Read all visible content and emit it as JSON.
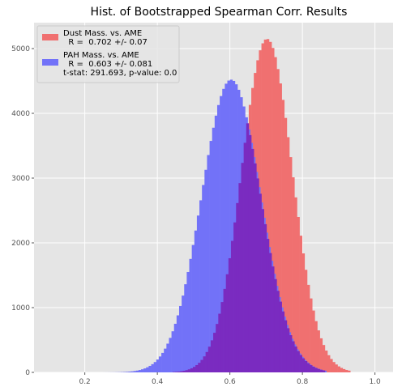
{
  "chart_data": {
    "type": "bar",
    "title": "Hist. of Bootstrapped Spearman Corr. Results",
    "xlabel": "",
    "ylabel": "",
    "xlim": [
      0.06,
      1.05
    ],
    "ylim": [
      0,
      5400
    ],
    "xticks": [
      {
        "value": 0.2,
        "label": "0.2"
      },
      {
        "value": 0.4,
        "label": "0.4"
      },
      {
        "value": 0.6,
        "label": "0.6"
      },
      {
        "value": 0.8,
        "label": "0.8"
      },
      {
        "value": 1.0,
        "label": "1.0"
      }
    ],
    "yticks": [
      {
        "value": 0,
        "label": "0"
      },
      {
        "value": 1000,
        "label": "1000"
      },
      {
        "value": 2000,
        "label": "2000"
      },
      {
        "value": 3000,
        "label": "3000"
      },
      {
        "value": 4000,
        "label": "4000"
      },
      {
        "value": 5000,
        "label": "5000"
      }
    ],
    "grid": true,
    "legend_position": "top-left",
    "series": [
      {
        "name": "Dust Mass. vs. AME",
        "legend_lines": [
          "Dust Mass. vs. AME",
          "  R =  0.702 +/- 0.07"
        ],
        "color": "#f07070",
        "mean": 0.702,
        "std": 0.07,
        "bin_start": 0.33,
        "bin_end": 0.93,
        "bin_width": 0.007,
        "peak": 5150
      },
      {
        "name": "PAH Mass. vs. AME",
        "legend_lines": [
          "PAH Mass. vs. AME",
          "  R =  0.603 +/- 0.081",
          "t-stat: 291.693, p-value: 0.0"
        ],
        "color": "#7272f8",
        "mean": 0.603,
        "std": 0.081,
        "bin_start": 0.25,
        "bin_end": 0.86,
        "bin_width": 0.007,
        "peak": 4520
      }
    ],
    "overlap_color": "#7a2bc0"
  }
}
